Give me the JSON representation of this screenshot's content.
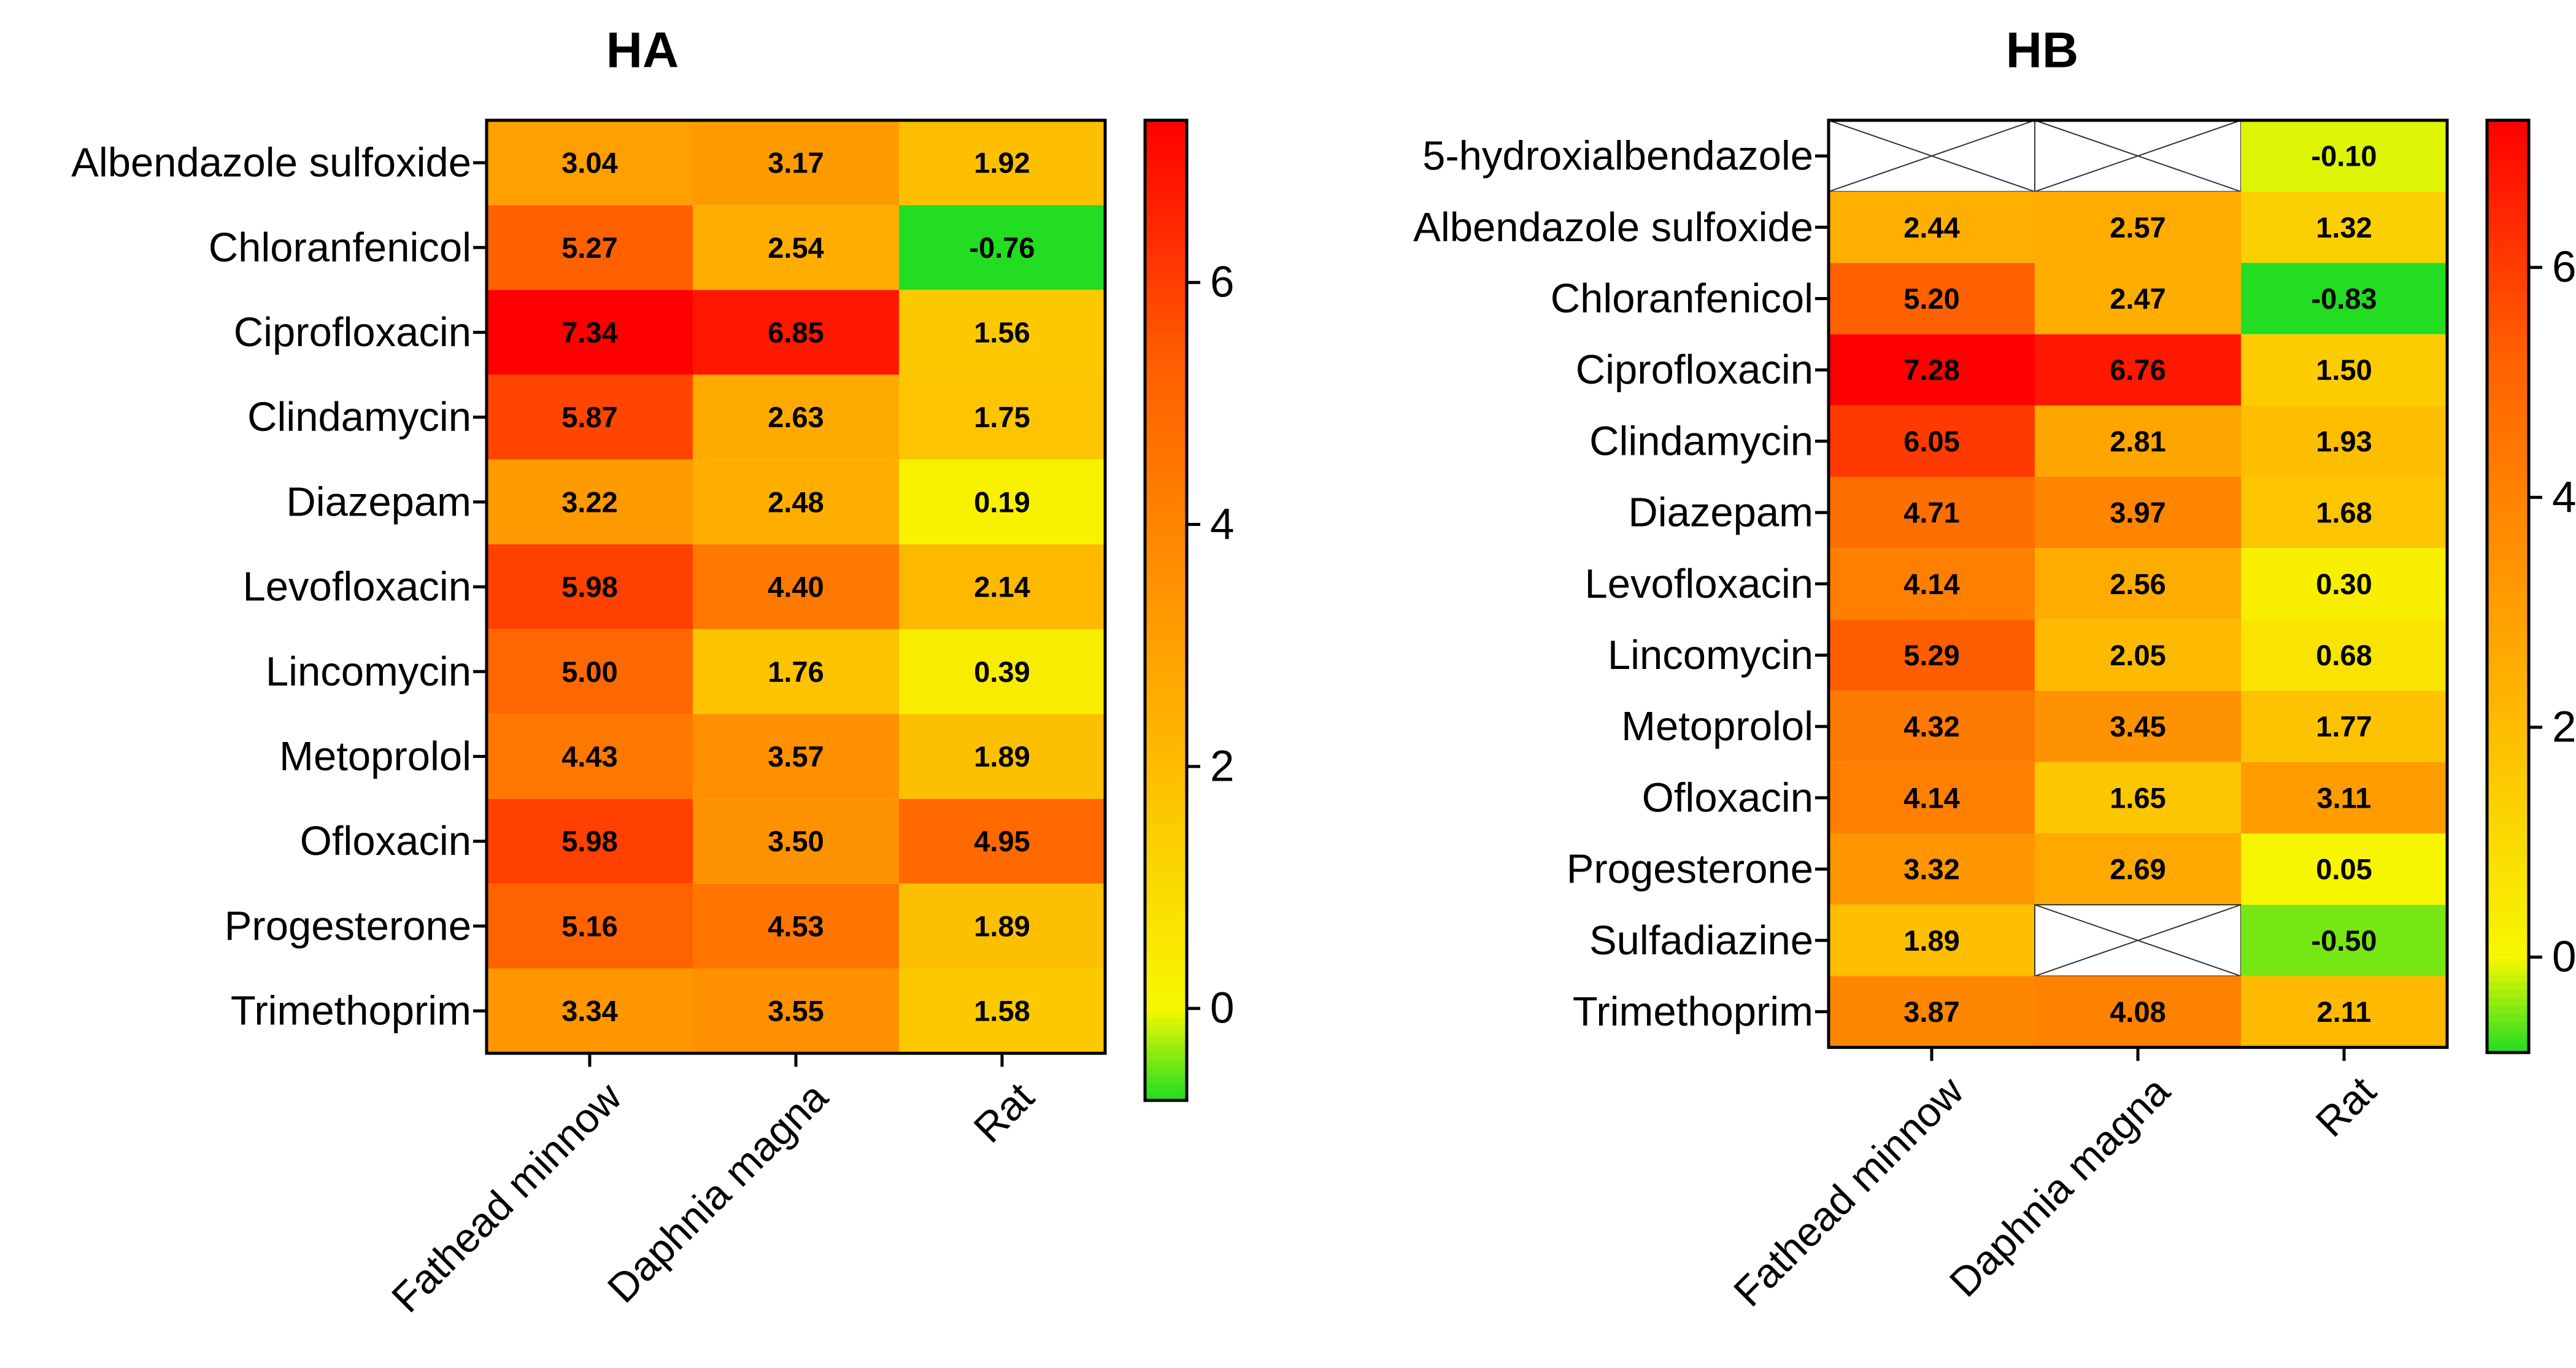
{
  "chart_data": [
    {
      "type": "heatmap",
      "title": "HA",
      "columns": [
        "Fathead minnow",
        "Daphnia magna",
        "Rat"
      ],
      "rows": [
        "Albendazole sulfoxide",
        "Chloranfenicol",
        "Ciprofloxacin",
        "Clindamycin",
        "Diazepam",
        "Levofloxacin",
        "Lincomycin",
        "Metoprolol",
        "Ofloxacin",
        "Progesterone",
        "Trimethoprim"
      ],
      "values": [
        [
          3.04,
          3.17,
          1.92
        ],
        [
          5.27,
          2.54,
          -0.76
        ],
        [
          7.34,
          6.85,
          1.56
        ],
        [
          5.87,
          2.63,
          1.75
        ],
        [
          3.22,
          2.48,
          0.19
        ],
        [
          5.98,
          4.4,
          2.14
        ],
        [
          5.0,
          1.76,
          0.39
        ],
        [
          4.43,
          3.57,
          1.89
        ],
        [
          5.98,
          3.5,
          4.95
        ],
        [
          5.16,
          4.53,
          1.89
        ],
        [
          3.34,
          3.55,
          1.58
        ]
      ],
      "labels": [
        [
          "3.04",
          "3.17",
          "1.92"
        ],
        [
          "5.27",
          "2.54",
          "-0.76"
        ],
        [
          "7.34",
          "6.85",
          "1.56"
        ],
        [
          "5.87",
          "2.63",
          "1.75"
        ],
        [
          "3.22",
          "2.48",
          "0.19"
        ],
        [
          "5.98",
          "4.40",
          "2.14"
        ],
        [
          "5.00",
          "1.76",
          "0.39"
        ],
        [
          "4.43",
          "3.57",
          "1.89"
        ],
        [
          "5.98",
          "3.50",
          "4.95"
        ],
        [
          "5.16",
          "4.53",
          "1.89"
        ],
        [
          "3.34",
          "3.55",
          "1.58"
        ]
      ],
      "colorbar": {
        "range": [
          -0.76,
          7.34
        ],
        "ticks": [
          0,
          2,
          4,
          6
        ],
        "tick_labels": [
          "0",
          "2",
          "4",
          "6"
        ]
      }
    },
    {
      "type": "heatmap",
      "title": "HB",
      "columns": [
        "Fathead minnow",
        "Daphnia magna",
        "Rat"
      ],
      "rows": [
        "5-hydroxialbendazole",
        "Albendazole sulfoxide",
        "Chloranfenicol",
        "Ciprofloxacin",
        "Clindamycin",
        "Diazepam",
        "Levofloxacin",
        "Lincomycin",
        "Metoprolol",
        "Ofloxacin",
        "Progesterone",
        "Sulfadiazine",
        "Trimethoprim"
      ],
      "values": [
        [
          null,
          null,
          -0.1
        ],
        [
          2.44,
          2.57,
          1.32
        ],
        [
          5.2,
          2.47,
          -0.83
        ],
        [
          7.28,
          6.76,
          1.5
        ],
        [
          6.05,
          2.81,
          1.93
        ],
        [
          4.71,
          3.97,
          1.68
        ],
        [
          4.14,
          2.56,
          0.3
        ],
        [
          5.29,
          2.05,
          0.68
        ],
        [
          4.32,
          3.45,
          1.77
        ],
        [
          4.14,
          1.65,
          3.11
        ],
        [
          3.32,
          2.69,
          0.05
        ],
        [
          1.89,
          null,
          -0.5
        ],
        [
          3.87,
          4.08,
          2.11
        ]
      ],
      "labels": [
        [
          null,
          null,
          "-0.10"
        ],
        [
          "2.44",
          "2.57",
          "1.32"
        ],
        [
          "5.20",
          "2.47",
          "-0.83"
        ],
        [
          "7.28",
          "6.76",
          "1.50"
        ],
        [
          "6.05",
          "2.81",
          "1.93"
        ],
        [
          "4.71",
          "3.97",
          "1.68"
        ],
        [
          "4.14",
          "2.56",
          "0.30"
        ],
        [
          "5.29",
          "2.05",
          "0.68"
        ],
        [
          "4.32",
          "3.45",
          "1.77"
        ],
        [
          "4.14",
          "1.65",
          "3.11"
        ],
        [
          "3.32",
          "2.69",
          "0.05"
        ],
        [
          "1.89",
          null,
          "-0.50"
        ],
        [
          "3.87",
          "4.08",
          "2.11"
        ]
      ],
      "colorbar": {
        "range": [
          -0.83,
          7.28
        ],
        "ticks": [
          0,
          2,
          4,
          6
        ],
        "tick_labels": [
          "0",
          "2",
          "4",
          "6"
        ]
      }
    }
  ],
  "colors": {
    "min": "#22dd22",
    "zero": "#f7f700",
    "mid": "#ffb000",
    "high": "#ff6000",
    "max": "#ff0000",
    "missing": "#ffffff",
    "stroke": "#000000"
  }
}
